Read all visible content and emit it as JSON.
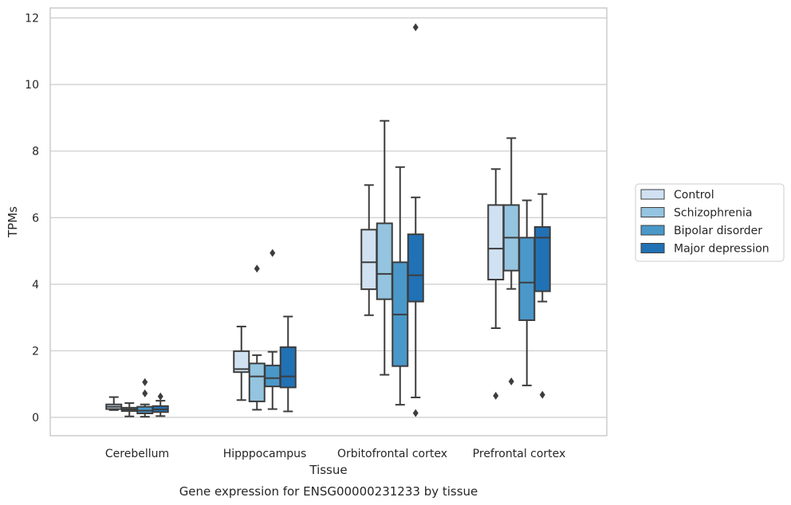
{
  "caption": "Gene expression for ENSG00000231233 by tissue",
  "chart_data": {
    "type": "box",
    "xlabel": "Tissue",
    "ylabel": "TPMs",
    "ylim": [
      -0.55,
      12.3
    ],
    "yticks": [
      0,
      2,
      4,
      6,
      8,
      10,
      12
    ],
    "grid": "horizontal",
    "legend_position": "right",
    "categories": [
      "Cerebellum",
      "Hipppocampus",
      "Orbitofrontal cortex",
      "Prefrontal cortex"
    ],
    "series": [
      {
        "name": "Control",
        "color": "#d0e1f2",
        "boxes": [
          {
            "whislo": 0.22,
            "q1": 0.25,
            "med": 0.32,
            "q3": 0.39,
            "whishi": 0.61,
            "fliers": []
          },
          {
            "whislo": 0.52,
            "q1": 1.36,
            "med": 1.45,
            "q3": 1.99,
            "whishi": 2.73,
            "fliers": []
          },
          {
            "whislo": 3.07,
            "q1": 3.85,
            "med": 4.66,
            "q3": 5.64,
            "whishi": 6.98,
            "fliers": []
          },
          {
            "whislo": 2.68,
            "q1": 4.14,
            "med": 5.07,
            "q3": 6.38,
            "whishi": 7.46,
            "fliers": [
              0.65
            ]
          }
        ]
      },
      {
        "name": "Schizophrenia",
        "color": "#94c4df",
        "boxes": [
          {
            "whislo": 0.03,
            "q1": 0.19,
            "med": 0.24,
            "q3": 0.29,
            "whishi": 0.43,
            "fliers": []
          },
          {
            "whislo": 0.23,
            "q1": 0.48,
            "med": 1.23,
            "q3": 1.62,
            "whishi": 1.87,
            "fliers": [
              4.47
            ]
          },
          {
            "whislo": 1.28,
            "q1": 3.55,
            "med": 4.31,
            "q3": 5.83,
            "whishi": 8.91,
            "fliers": []
          },
          {
            "whislo": 3.86,
            "q1": 4.41,
            "med": 5.4,
            "q3": 6.38,
            "whishi": 8.39,
            "fliers": [
              1.08
            ]
          }
        ]
      },
      {
        "name": "Bipolar disorder",
        "color": "#4a98c9",
        "boxes": [
          {
            "whislo": 0.02,
            "q1": 0.12,
            "med": 0.2,
            "q3": 0.32,
            "whishi": 0.39,
            "fliers": [
              0.72,
              1.06
            ]
          },
          {
            "whislo": 0.25,
            "q1": 0.93,
            "med": 1.18,
            "q3": 1.56,
            "whishi": 1.97,
            "fliers": [
              4.94
            ]
          },
          {
            "whislo": 0.38,
            "q1": 1.54,
            "med": 3.09,
            "q3": 4.66,
            "whishi": 7.52,
            "fliers": []
          },
          {
            "whislo": 0.96,
            "q1": 2.92,
            "med": 4.05,
            "q3": 5.4,
            "whishi": 6.52,
            "fliers": []
          }
        ]
      },
      {
        "name": "Major depression",
        "color": "#2171b5",
        "boxes": [
          {
            "whislo": 0.04,
            "q1": 0.16,
            "med": 0.24,
            "q3": 0.34,
            "whishi": 0.5,
            "fliers": [
              0.63
            ]
          },
          {
            "whislo": 0.18,
            "q1": 0.9,
            "med": 1.23,
            "q3": 2.11,
            "whishi": 3.03,
            "fliers": []
          },
          {
            "whislo": 0.6,
            "q1": 3.48,
            "med": 4.27,
            "q3": 5.5,
            "whishi": 6.61,
            "fliers": [
              0.13,
              11.72
            ]
          },
          {
            "whislo": 3.48,
            "q1": 3.79,
            "med": 5.4,
            "q3": 5.72,
            "whishi": 6.71,
            "fliers": [
              0.68
            ]
          }
        ]
      }
    ]
  }
}
